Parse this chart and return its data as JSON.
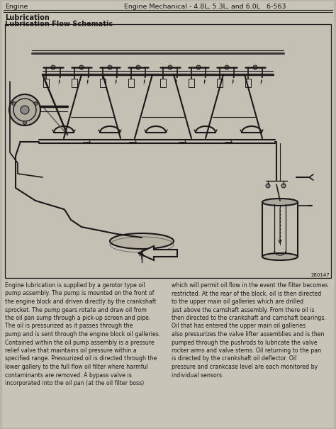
{
  "bg_color": "#b8b4a8",
  "page_bg": "#c8c5b8",
  "diagram_bg": "#c4c0b4",
  "header_left": "Engine",
  "header_right": "Engine Mechanical - 4.8L, 5.3L, and 6.0L   6-563",
  "section1": "Lubrication",
  "section2": "Lubrication Flow Schematic",
  "figure_number": "280147",
  "body_left": "Engine lubrication is supplied by a gerotor type oil\npump assembly. The pump is mounted on the front of\nthe engine block and driven directly by the crankshaft\nsprocket. The pump gears rotate and draw oil from\nthe oil pan sump through a pick-up screen and pipe.\nThe oil is pressurized as it passes through the\npump and is sent through the engine block oil galleries.\nContained within the oil pump assembly is a pressure\nrelief valve that maintains oil pressure within a\nspecified range. Pressurized oil is directed through the\nlower gallery to the full flow oil filter where harmful\ncontaminants are removed. A bypass valve is\nincorporated into the oil pan (at the oil filter boss)",
  "body_right": "which will permit oil flow in the event the filter becomes\nrestricted. At the rear of the block, oil is then directed\nto the upper main oil galleries which are drilled\njust above the camshaft assembly. From there oil is\nthen directed to the crankshaft and camshaft bearings.\nOil that has entered the upper main oil galleries\nalso pressurizes the valve lifter assemblies and is then\npumped through the pushrods to lubricate the valve\nrocker arms and valve stems. Oil returning to the pan\nis directed by the crankshaft oil deflector. Oil\npressure and crankcase level are each monitored by\nindividual sensors.",
  "lc": "#1a1818",
  "tc": "#1a1818"
}
